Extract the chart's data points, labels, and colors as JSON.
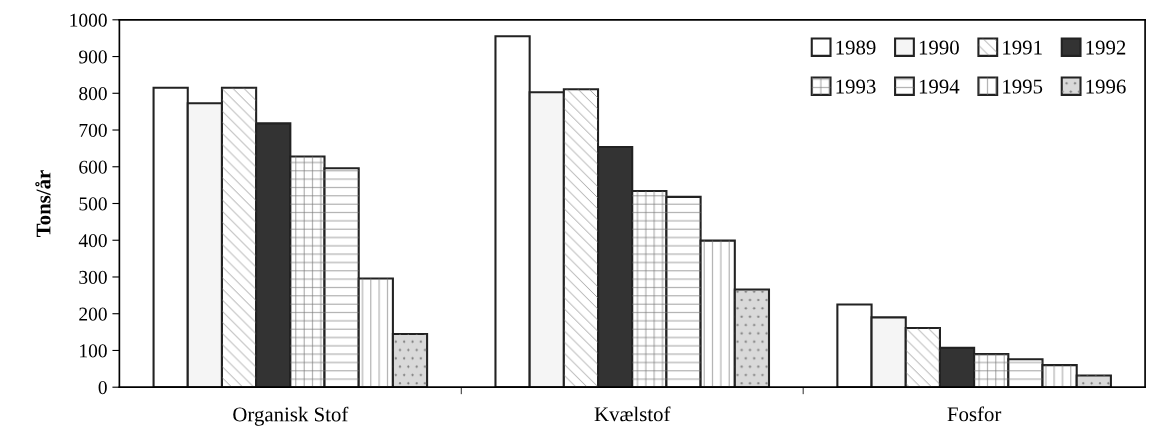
{
  "chart_data": {
    "type": "bar",
    "ylabel": "Tons/år",
    "categories": [
      "Organisk Stof",
      "Kvælstof",
      "Fosfor"
    ],
    "series": [
      {
        "name": "1989",
        "color": "#ffffff",
        "values": [
          815,
          955,
          225
        ]
      },
      {
        "name": "1990",
        "color": "#f5f5f5",
        "values": [
          773,
          803,
          190
        ]
      },
      {
        "name": "1991",
        "color": "#ffffff",
        "values": [
          815,
          811,
          161
        ]
      },
      {
        "name": "1992",
        "color": "#333333",
        "values": [
          718,
          654,
          107
        ]
      },
      {
        "name": "1993",
        "color": "#ffffff",
        "values": [
          628,
          534,
          90
        ]
      },
      {
        "name": "1994",
        "color": "#ffffff",
        "values": [
          596,
          518,
          76
        ]
      },
      {
        "name": "1995",
        "color": "#ffffff",
        "values": [
          296,
          399,
          60
        ]
      },
      {
        "name": "1996",
        "color": "#d9d9d9",
        "values": [
          145,
          266,
          32
        ]
      }
    ],
    "ylim": [
      0,
      1000
    ],
    "yticks": [
      0,
      100,
      200,
      300,
      400,
      500,
      600,
      700,
      800,
      900,
      1000
    ],
    "legend": "top right",
    "grid": false
  }
}
